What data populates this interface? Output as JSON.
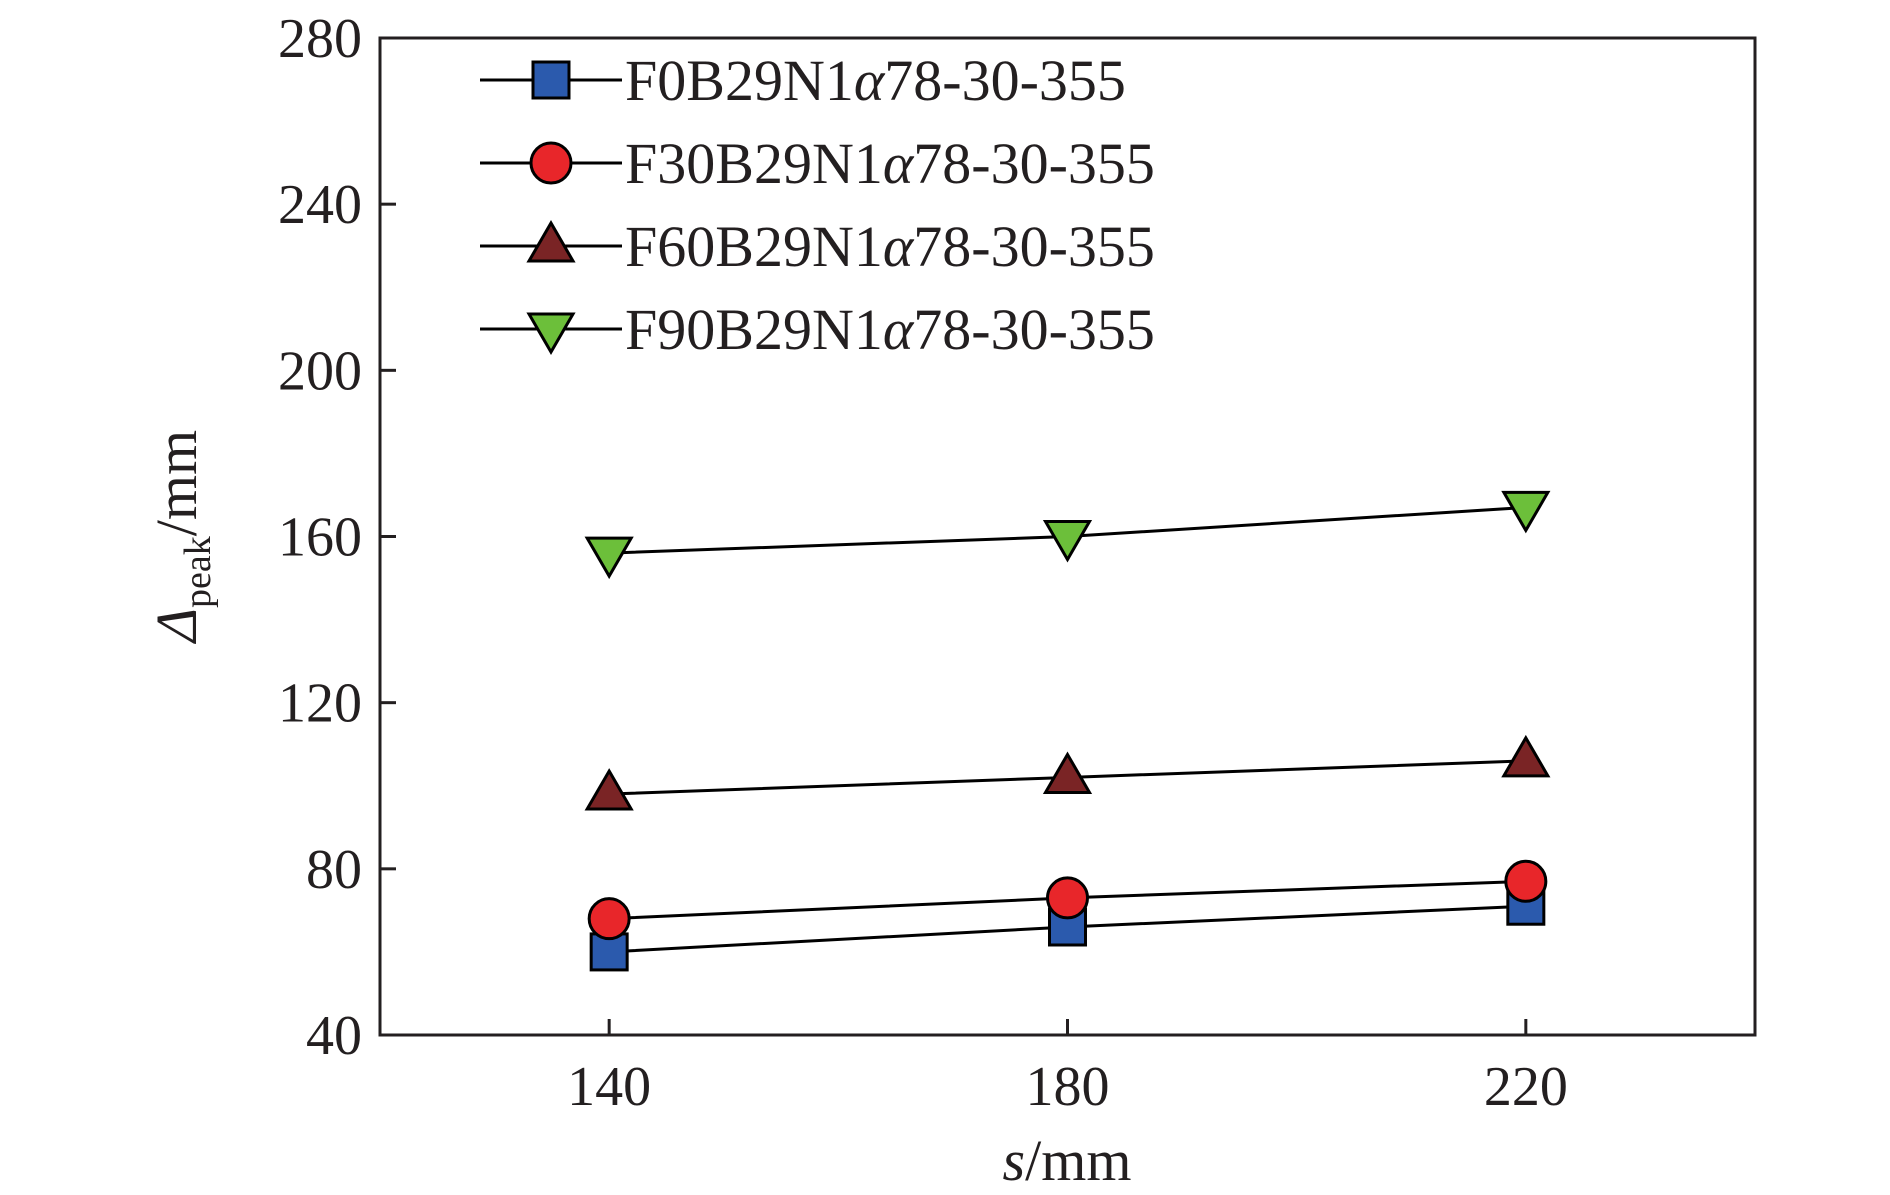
{
  "chart_data": {
    "type": "line",
    "xlabel": {
      "var": "s",
      "unit": "/mm"
    },
    "ylabel": {
      "var": "Δ",
      "sub": "peak",
      "unit": "/mm"
    },
    "xlim": [
      120,
      240
    ],
    "ylim": [
      40,
      280
    ],
    "xticks": [
      140,
      180,
      220
    ],
    "yticks": [
      40,
      80,
      120,
      160,
      200,
      240,
      280
    ],
    "grid": false,
    "legend_position": "top-left",
    "x": [
      140,
      180,
      220
    ],
    "series": [
      {
        "name": "F0B29N1α78-30-355",
        "name_parts": [
          "F0B29N1",
          "α",
          "78-30-355"
        ],
        "marker": "square",
        "color": "#2b5aad",
        "values": [
          60,
          66,
          71
        ]
      },
      {
        "name": "F30B29N1α78-30-355",
        "name_parts": [
          "F30B29N1",
          "α",
          "78-30-355"
        ],
        "marker": "circle",
        "color": "#e8262a",
        "values": [
          68,
          73,
          77
        ]
      },
      {
        "name": "F60B29N1α78-30-355",
        "name_parts": [
          "F60B29N1",
          "α",
          "78-30-355"
        ],
        "marker": "triangle-up",
        "color": "#7a2425",
        "values": [
          98,
          102,
          106
        ]
      },
      {
        "name": "F90B29N1α78-30-355",
        "name_parts": [
          "F90B29N1",
          "α",
          "78-30-355"
        ],
        "marker": "triangle-down",
        "color": "#6cbf3a",
        "values": [
          156,
          160,
          167
        ]
      }
    ]
  }
}
